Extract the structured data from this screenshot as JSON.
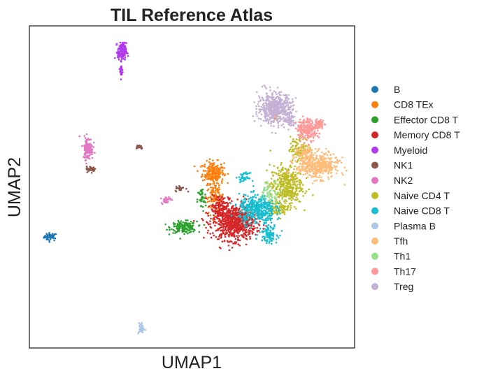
{
  "chart_data": {
    "type": "scatter",
    "title": "TIL Reference Atlas",
    "xlabel": "UMAP1",
    "ylabel": "UMAP2",
    "xlim": [
      0,
      100
    ],
    "ylim": [
      0,
      100
    ],
    "grid": false,
    "ticks": false,
    "legend_position": "right",
    "series": [
      {
        "name": "B",
        "color": "#1f77b4",
        "clusters": [
          {
            "cx": 6.5,
            "cy": 34.5,
            "rx": 1.8,
            "ry": 1.1,
            "n": 45
          }
        ]
      },
      {
        "name": "CD8 TEx",
        "color": "#ff7f0e",
        "clusters": [
          {
            "cx": 56.5,
            "cy": 54.5,
            "rx": 3.0,
            "ry": 3.0,
            "n": 220
          },
          {
            "cx": 57.0,
            "cy": 47.0,
            "rx": 2.5,
            "ry": 5.0,
            "n": 120
          },
          {
            "cx": 75.5,
            "cy": 72.0,
            "rx": 0.8,
            "ry": 2.0,
            "n": 20
          }
        ]
      },
      {
        "name": "Effector CD8 T",
        "color": "#2ca02c",
        "clusters": [
          {
            "cx": 47.5,
            "cy": 37.5,
            "rx": 3.6,
            "ry": 1.6,
            "n": 170
          },
          {
            "cx": 53.0,
            "cy": 46.0,
            "rx": 1.2,
            "ry": 3.5,
            "n": 40
          }
        ]
      },
      {
        "name": "Memory CD8 T",
        "color": "#d62728",
        "clusters": [
          {
            "cx": 63.0,
            "cy": 39.0,
            "rx": 6.0,
            "ry": 5.0,
            "n": 780
          },
          {
            "cx": 58.5,
            "cy": 44.0,
            "rx": 2.5,
            "ry": 3.5,
            "n": 120
          }
        ]
      },
      {
        "name": "Myeloid",
        "color": "#b03aee",
        "clusters": [
          {
            "cx": 28.5,
            "cy": 92.0,
            "rx": 1.2,
            "ry": 2.4,
            "n": 160
          },
          {
            "cx": 28.3,
            "cy": 86.0,
            "rx": 0.4,
            "ry": 2.0,
            "n": 25
          }
        ]
      },
      {
        "name": "NK1",
        "color": "#8c564b",
        "clusters": [
          {
            "cx": 33.7,
            "cy": 62.5,
            "rx": 1.2,
            "ry": 0.6,
            "n": 30
          },
          {
            "cx": 19.0,
            "cy": 55.5,
            "rx": 1.3,
            "ry": 0.8,
            "n": 45
          },
          {
            "cx": 46.5,
            "cy": 49.5,
            "rx": 1.5,
            "ry": 0.8,
            "n": 25
          }
        ]
      },
      {
        "name": "NK2",
        "color": "#e377c2",
        "clusters": [
          {
            "cx": 18.0,
            "cy": 62.0,
            "rx": 1.4,
            "ry": 3.2,
            "n": 130
          },
          {
            "cx": 42.0,
            "cy": 46.0,
            "rx": 1.3,
            "ry": 1.0,
            "n": 35
          }
        ]
      },
      {
        "name": "Naive CD4 T",
        "color": "#bcbd22",
        "clusters": [
          {
            "cx": 79.0,
            "cy": 50.5,
            "rx": 4.5,
            "ry": 5.5,
            "n": 380
          },
          {
            "cx": 83.0,
            "cy": 62.0,
            "rx": 2.5,
            "ry": 3.5,
            "n": 100
          },
          {
            "cx": 77.0,
            "cy": 43.5,
            "rx": 3.5,
            "ry": 2.0,
            "n": 80
          }
        ]
      },
      {
        "name": "Naive CD8 T",
        "color": "#17becf",
        "clusters": [
          {
            "cx": 70.0,
            "cy": 43.0,
            "rx": 5.0,
            "ry": 4.0,
            "n": 420
          },
          {
            "cx": 73.5,
            "cy": 35.5,
            "rx": 2.5,
            "ry": 2.5,
            "n": 100
          },
          {
            "cx": 66.0,
            "cy": 53.0,
            "rx": 1.5,
            "ry": 1.2,
            "n": 40
          }
        ]
      },
      {
        "name": "Plasma B",
        "color": "#aec7e8",
        "clusters": [
          {
            "cx": 34.5,
            "cy": 6.0,
            "rx": 0.9,
            "ry": 1.6,
            "n": 35
          }
        ]
      },
      {
        "name": "Tfh",
        "color": "#ffbb78",
        "clusters": [
          {
            "cx": 88.5,
            "cy": 56.5,
            "rx": 6.0,
            "ry": 3.5,
            "n": 420
          },
          {
            "cx": 85.0,
            "cy": 60.5,
            "rx": 2.5,
            "ry": 2.0,
            "n": 80
          }
        ]
      },
      {
        "name": "Th1",
        "color": "#98df8a",
        "clusters": [
          {
            "cx": 74.0,
            "cy": 48.5,
            "rx": 3.0,
            "ry": 3.0,
            "n": 60
          }
        ]
      },
      {
        "name": "Th17",
        "color": "#ff9896",
        "clusters": [
          {
            "cx": 85.5,
            "cy": 68.0,
            "rx": 3.0,
            "ry": 3.0,
            "n": 230
          },
          {
            "cx": 89.0,
            "cy": 69.5,
            "rx": 1.5,
            "ry": 1.3,
            "n": 50
          }
        ]
      },
      {
        "name": "Treg",
        "color": "#c5b0d5",
        "clusters": [
          {
            "cx": 75.5,
            "cy": 74.5,
            "rx": 4.8,
            "ry": 4.2,
            "n": 520
          },
          {
            "cx": 80.0,
            "cy": 71.0,
            "rx": 1.5,
            "ry": 2.5,
            "n": 60
          }
        ]
      }
    ]
  }
}
